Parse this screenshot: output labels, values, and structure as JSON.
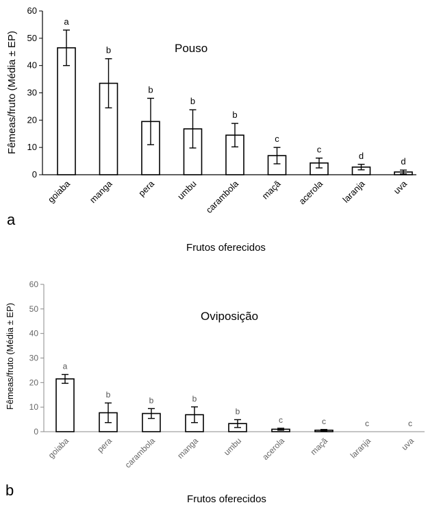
{
  "chart_data": [
    {
      "type": "bar",
      "panel_label": "a",
      "title": "Pouso",
      "xlabel": "Frutos oferecidos",
      "ylabel": "Fêmeas/fruto (Média ± EP)",
      "ylim": [
        0,
        60
      ],
      "yticks": [
        0,
        10,
        20,
        30,
        40,
        50,
        60
      ],
      "categories": [
        "goiaba",
        "manga",
        "pera",
        "umbu",
        "carambola",
        "maçã",
        "acerola",
        "laranja",
        "uva"
      ],
      "values": [
        46.5,
        33.5,
        19.5,
        16.8,
        14.5,
        7.0,
        4.3,
        2.8,
        1.0
      ],
      "errors": [
        6.5,
        9.0,
        8.5,
        7.0,
        4.3,
        3.0,
        1.8,
        1.0,
        0.7
      ],
      "significance": [
        "a",
        "b",
        "b",
        "b",
        "b",
        "c",
        "c",
        "d",
        "d"
      ],
      "grid": false
    },
    {
      "type": "bar",
      "panel_label": "b",
      "title": "Oviposição",
      "xlabel": "Frutos oferecidos",
      "ylabel": "Fêmeas/fruto (Média ± EP)",
      "ylim": [
        0,
        60
      ],
      "yticks": [
        0,
        10,
        20,
        30,
        40,
        50,
        60
      ],
      "categories": [
        "goiaba",
        "pera",
        "carambola",
        "manga",
        "umbu",
        "acerola",
        "maçã",
        "laranja",
        "uva"
      ],
      "values": [
        21.5,
        7.7,
        7.4,
        6.9,
        3.3,
        1.0,
        0.6,
        0,
        0
      ],
      "errors": [
        1.8,
        4.0,
        2.0,
        3.2,
        1.6,
        0.4,
        0.3,
        0,
        0
      ],
      "significance": [
        "a",
        "b",
        "b",
        "b",
        "b",
        "c",
        "c",
        "c",
        "c"
      ],
      "grid": false
    }
  ]
}
